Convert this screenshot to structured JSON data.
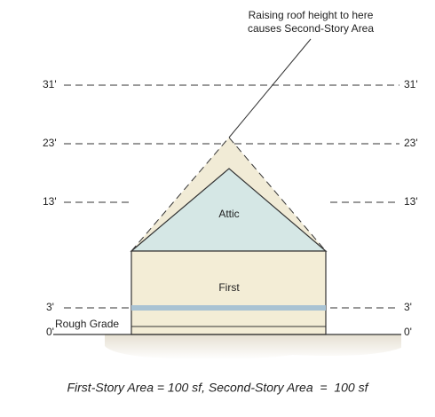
{
  "callout": {
    "lines": [
      "Raising roof height to here",
      "causes Second-Story Area"
    ]
  },
  "elevations": [
    "31'",
    "23'",
    "13'",
    "3'",
    "0'"
  ],
  "rooms": {
    "attic": "Attic",
    "first": "First"
  },
  "ground_label": "Rough Grade",
  "caption": "First-Story Area = 100 sf, Second-Story Area  =  100 sf"
}
